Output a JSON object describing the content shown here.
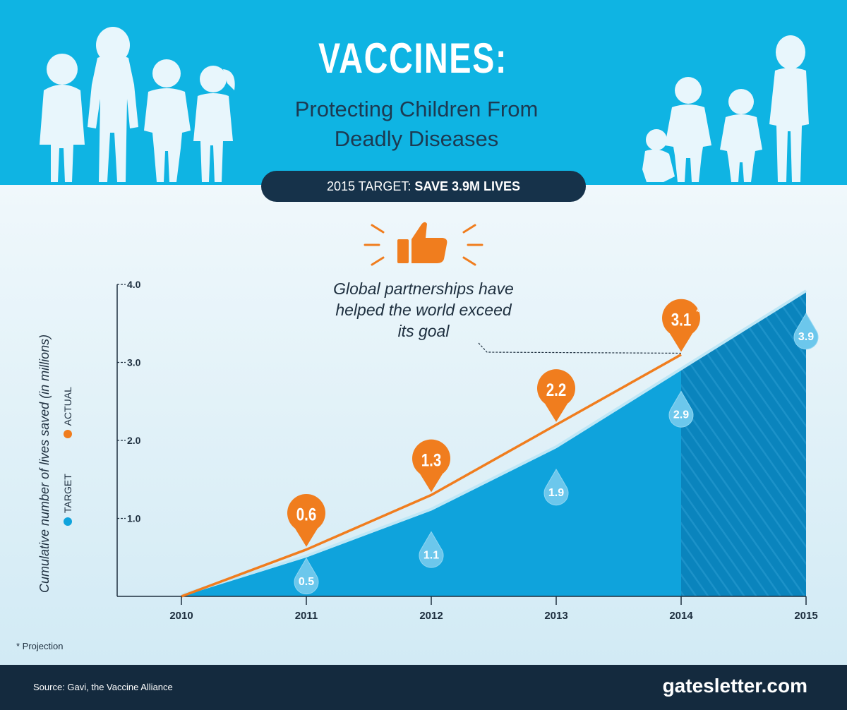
{
  "header": {
    "title": "VACCINES:",
    "subtitle_line1": "Protecting Children From",
    "subtitle_line2": "Deadly Diseases",
    "target_prefix": "2015 TARGET:",
    "target_value": "SAVE 3.9M LIVES"
  },
  "annotation": {
    "line1": "Global partnerships have",
    "line2": "helped the world exceed",
    "line3": "its goal"
  },
  "footnote": "* Projection",
  "footer": {
    "source": "Source: Gavi, the Vaccine Alliance",
    "site": "gatesletter.com"
  },
  "colors": {
    "header_bg": "#0fb4e3",
    "actual": "#f07d1e",
    "target": "#0fa3dc",
    "target_projection": "#0a84bd",
    "dark": "#16324a"
  },
  "chart_data": {
    "type": "area",
    "title": "VACCINES: Protecting Children From Deadly Diseases",
    "xlabel": "",
    "ylabel": "Cumulative number of lives saved (in millions)",
    "ylim": [
      0,
      4.0
    ],
    "yticks": [
      "1.0",
      "2.0",
      "3.0",
      "4.0"
    ],
    "categories": [
      "2010",
      "2011",
      "2012",
      "2013",
      "2014",
      "2015"
    ],
    "series": [
      {
        "name": "TARGET",
        "values": [
          0,
          0.5,
          1.1,
          1.9,
          2.9,
          3.9
        ],
        "labels": [
          "",
          "0.5",
          "1.1",
          "1.9",
          "2.9",
          "3.9"
        ]
      },
      {
        "name": "ACTUAL",
        "values": [
          0,
          0.6,
          1.3,
          2.2,
          3.1,
          null
        ],
        "labels": [
          "",
          "0.6",
          "1.3",
          "2.2",
          "3.1",
          ""
        ],
        "projection_note": "*"
      }
    ],
    "legend": [
      "TARGET",
      "ACTUAL"
    ],
    "legend_position": "left, rotated"
  }
}
